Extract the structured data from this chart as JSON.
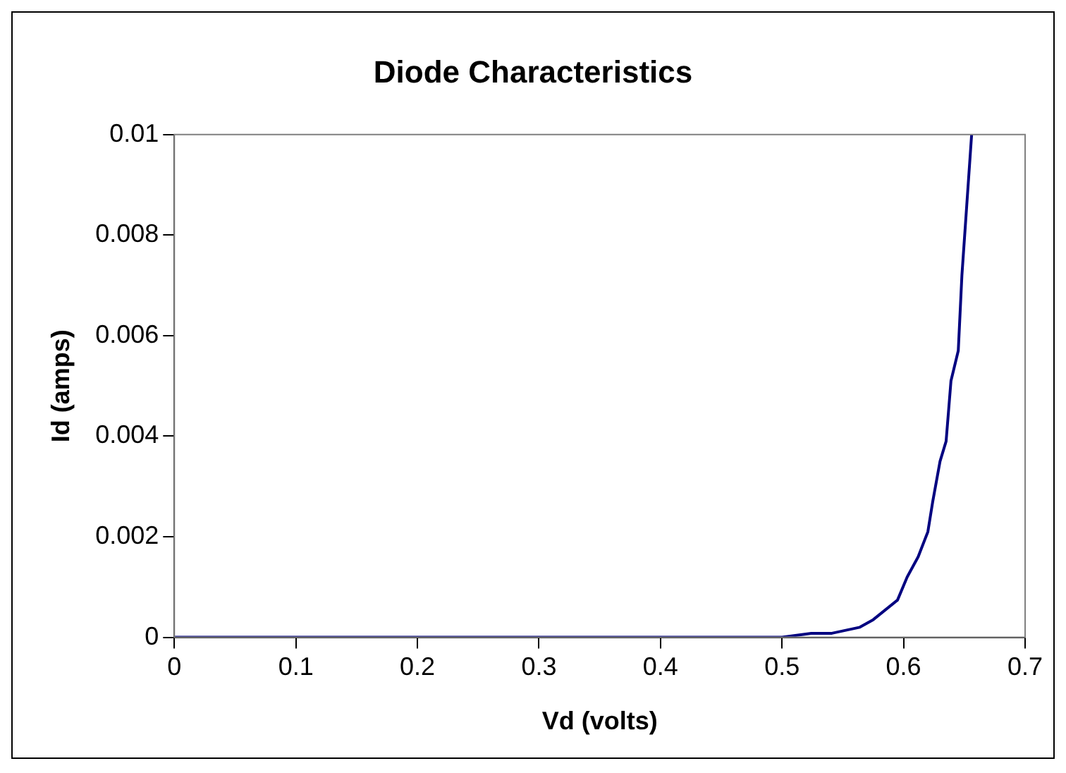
{
  "chart_data": {
    "type": "line",
    "title": "Diode Characteristics",
    "xlabel": "Vd (volts)",
    "ylabel": "Id (amps)",
    "x": [
      0,
      0.1,
      0.2,
      0.3,
      0.4,
      0.5,
      0.524,
      0.541,
      0.564,
      0.575,
      0.595,
      0.603,
      0.612,
      0.62,
      0.624,
      0.63,
      0.635,
      0.639,
      0.645,
      0.648,
      0.652,
      0.656
    ],
    "series": [
      {
        "color": "#000080",
        "values": [
          0,
          0,
          0,
          0,
          0,
          0,
          8e-05,
          8e-05,
          0.0002,
          0.00035,
          0.00074,
          0.0012,
          0.0016,
          0.0021,
          0.0027,
          0.0035,
          0.0039,
          0.0051,
          0.0057,
          0.0072,
          0.0086,
          0.01
        ]
      }
    ],
    "xlim": [
      0,
      0.7
    ],
    "xticks": [
      0,
      0.1,
      0.2,
      0.3,
      0.4,
      0.5,
      0.6,
      0.7
    ],
    "ylim": [
      0,
      0.01
    ],
    "yticks": [
      0,
      0.002,
      0.004,
      0.006,
      0.008,
      0.01
    ],
    "grid": false,
    "legend": false,
    "marker": "none",
    "line_style": "solid"
  }
}
